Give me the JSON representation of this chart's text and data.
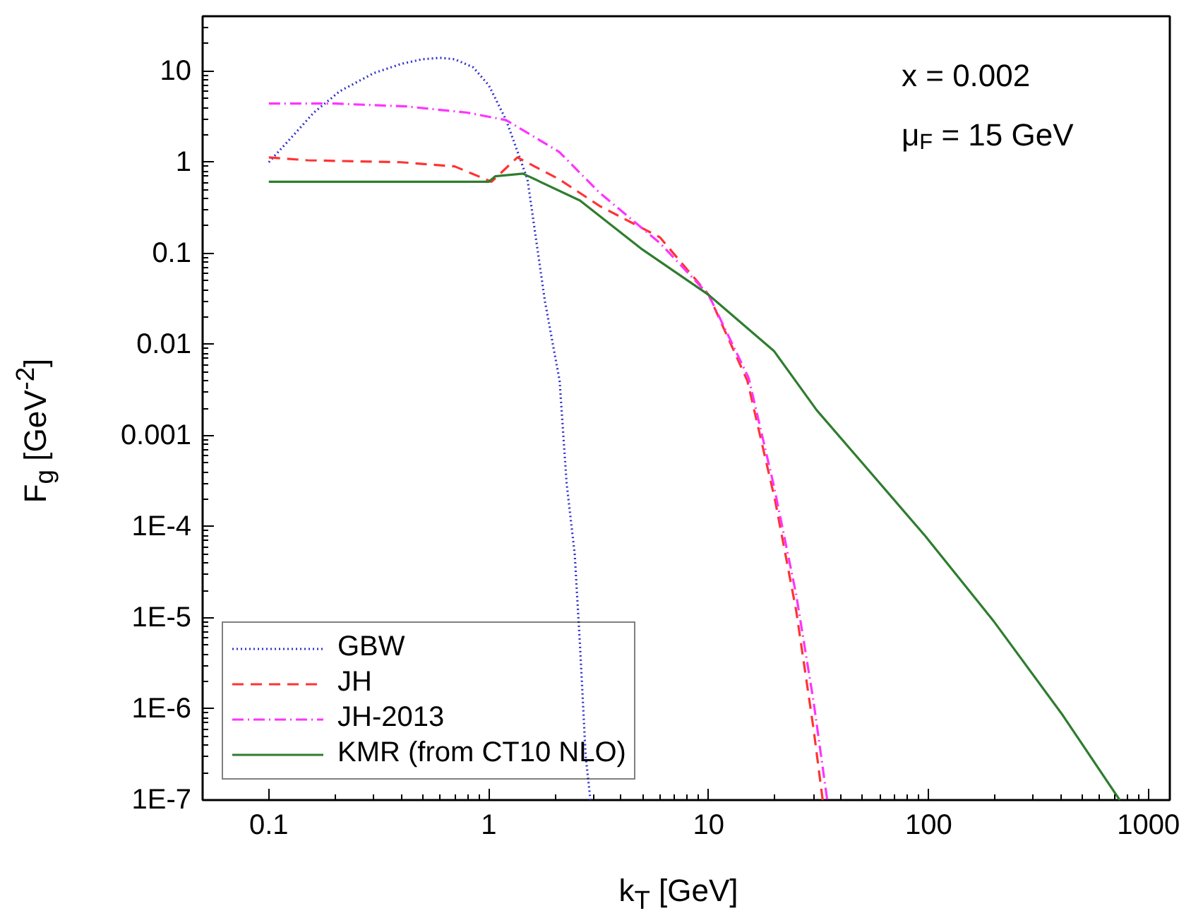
{
  "chart_data": {
    "type": "line",
    "xlabel": "k$_{T}$ [GeV]",
    "ylabel": "F$_{g}$ [GeV$^{-2}$]",
    "annotations": [
      "x = 0.002",
      "μ$_{F}$ = 15 GeV"
    ],
    "log": "xy",
    "xlim": [
      0.05,
      1250
    ],
    "ylim": [
      1e-07,
      40
    ],
    "xticks": [
      0.1,
      1,
      10,
      100,
      1000
    ],
    "yticks": [
      {
        "value": 1e-07,
        "label": "1E-7"
      },
      {
        "value": 1e-06,
        "label": "1E-6"
      },
      {
        "value": 1e-05,
        "label": "1E-5"
      },
      {
        "value": 0.0001,
        "label": "1E-4"
      },
      0.001,
      0.01,
      0.1,
      1,
      10
    ],
    "grid": false,
    "legend": "bottom left",
    "series": [
      {
        "name": "GBW",
        "color": "#3333cc",
        "line_style": "dotted",
        "x": [
          0.1,
          0.13,
          0.16,
          0.21,
          0.3,
          0.4,
          0.5,
          0.6,
          0.7,
          0.85,
          1.0,
          1.2,
          1.5,
          1.8,
          2.1,
          2.26,
          2.46,
          2.6,
          2.76,
          2.9
        ],
        "values": [
          1,
          2,
          3.5,
          6,
          9.5,
          12,
          13.5,
          14,
          13.5,
          11,
          7,
          2.9,
          0.65,
          0.03,
          0.004,
          0.0003,
          5e-05,
          5e-06,
          3e-07,
          1e-07
        ]
      },
      {
        "name": "JH",
        "color": "#ff3333",
        "line_style": "dashed",
        "x": [
          0.1,
          0.15,
          0.4,
          0.7,
          1.03,
          1.35,
          2.09,
          3.2,
          6,
          10,
          15,
          20,
          25,
          30,
          33
        ],
        "values": [
          1.13,
          1.05,
          1.0,
          0.9,
          0.61,
          1.13,
          0.65,
          0.33,
          0.15,
          0.035,
          0.004,
          0.0002,
          1.2e-05,
          6e-07,
          1e-07
        ]
      },
      {
        "name": "JH-2013",
        "color": "#ff33ff",
        "line_style": "dashdot",
        "x": [
          0.1,
          0.2,
          0.42,
          0.8,
          1.2,
          2.09,
          3.2,
          6,
          10,
          15.2,
          19.8,
          25,
          30,
          34.6
        ],
        "values": [
          4.4,
          4.4,
          4.1,
          3.5,
          2.9,
          1.3,
          0.46,
          0.13,
          0.035,
          0.0043,
          0.00028,
          1.8e-05,
          1.2e-06,
          1e-07
        ]
      },
      {
        "name": "KMR (from CT10 NLO)",
        "color": "#2e7d2e",
        "line_style": "solid",
        "x": [
          0.1,
          0.5,
          1.0,
          1.07,
          1.43,
          2.6,
          5,
          10,
          19.8,
          31,
          50,
          97,
          199,
          405,
          740
        ],
        "values": [
          0.61,
          0.61,
          0.61,
          0.7,
          0.75,
          0.38,
          0.11,
          0.035,
          0.0085,
          0.0019,
          0.0005,
          7.8e-05,
          9e-06,
          8.7e-07,
          1e-07
        ]
      }
    ]
  }
}
